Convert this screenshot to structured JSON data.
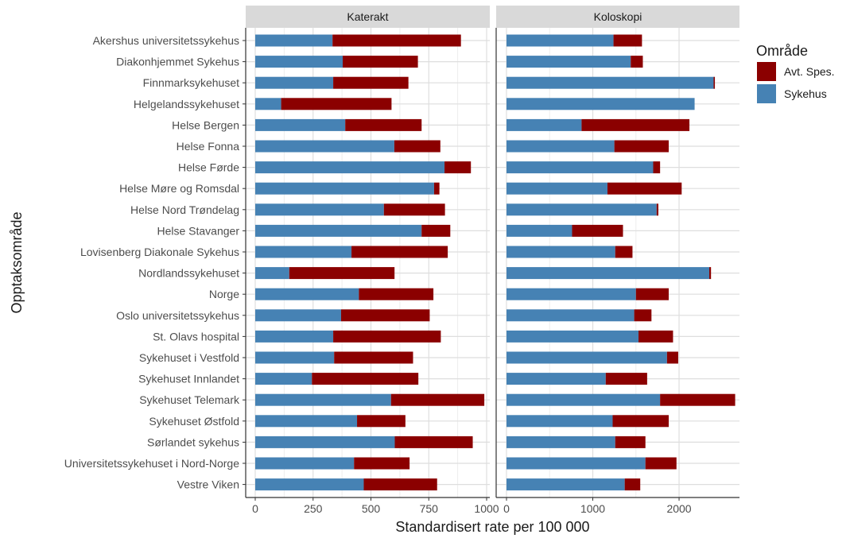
{
  "chart_data": {
    "type": "bar",
    "orientation": "horizontal",
    "stacked": true,
    "xlabel": "Standardisert rate per 100 000",
    "ylabel": "Opptaksområde",
    "legend": {
      "title": "Område",
      "entries": [
        "Avt. Spes.",
        "Sykehus"
      ],
      "position": "right"
    },
    "colors": {
      "Avt. Spes.": "#8b0000",
      "Sykehus": "#4682b4"
    },
    "categories": [
      "Akershus universitetssykehus",
      "Diakonhjemmet Sykehus",
      "Finnmarksykehuset",
      "Helgelandssykehuset",
      "Helse Bergen",
      "Helse Fonna",
      "Helse Førde",
      "Helse Møre og Romsdal",
      "Helse Nord Trøndelag",
      "Helse Stavanger",
      "Lovisenberg Diakonale Sykehus",
      "Nordlandssykehuset",
      "Norge",
      "Oslo universitetssykehus",
      "St. Olavs hospital",
      "Sykehuset i Vestfold",
      "Sykehuset Innlandet",
      "Sykehuset Telemark",
      "Sykehuset Østfold",
      "Sørlandet sykehus",
      "Universitetssykehuset i Nord-Norge",
      "Vestre Viken"
    ],
    "panels": [
      {
        "title": "Katerakt",
        "xlim": [
          0,
          1000
        ],
        "ticks": [
          0,
          250,
          500,
          750,
          1000
        ],
        "tick_labels": [
          "0",
          "250",
          "500",
          "750",
          "1000"
        ],
        "series": [
          {
            "name": "Sykehus",
            "values": [
              334,
              378,
              337,
              112,
              389,
              601,
              818,
              773,
              556,
              719,
              416,
              147,
              448,
              371,
              337,
              341,
              245,
              587,
              440,
              603,
              427,
              469
            ]
          },
          {
            "name": "Avt. Spes.",
            "values": [
              555,
              325,
              325,
              477,
              330,
              199,
              114,
              23,
              264,
              124,
              416,
              455,
              322,
              383,
              465,
              341,
              460,
              403,
              209,
              337,
              240,
              317
            ]
          }
        ]
      },
      {
        "title": "Koloskopi",
        "xlim": [
          0,
          2700
        ],
        "ticks": [
          0,
          1000,
          2000
        ],
        "tick_labels": [
          "0",
          "1000",
          "2000"
        ],
        "series": [
          {
            "name": "Sykehus",
            "values": [
              1240,
              1440,
              2400,
              2180,
              870,
              1250,
              1700,
              1170,
              1740,
              760,
              1260,
              2350,
              1500,
              1480,
              1530,
              1860,
              1150,
              1780,
              1230,
              1260,
              1610,
              1370
            ]
          },
          {
            "name": "Avt. Spes.",
            "values": [
              330,
              140,
              15,
              0,
              1250,
              630,
              80,
              860,
              20,
              590,
              200,
              20,
              380,
              200,
              400,
              130,
              480,
              870,
              650,
              350,
              360,
              180
            ]
          }
        ]
      }
    ]
  }
}
